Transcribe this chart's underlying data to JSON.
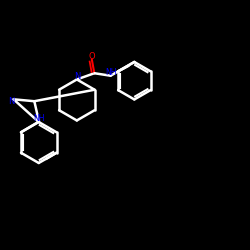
{
  "background_color": "#000000",
  "bond_color": "#000000",
  "line_color": "#ffffff",
  "atom_colors": {
    "N": "#0000ff",
    "O": "#ff0000",
    "C": "#ffffff",
    "H": "#0000ff"
  },
  "figsize": [
    2.5,
    2.5
  ],
  "dpi": 100
}
